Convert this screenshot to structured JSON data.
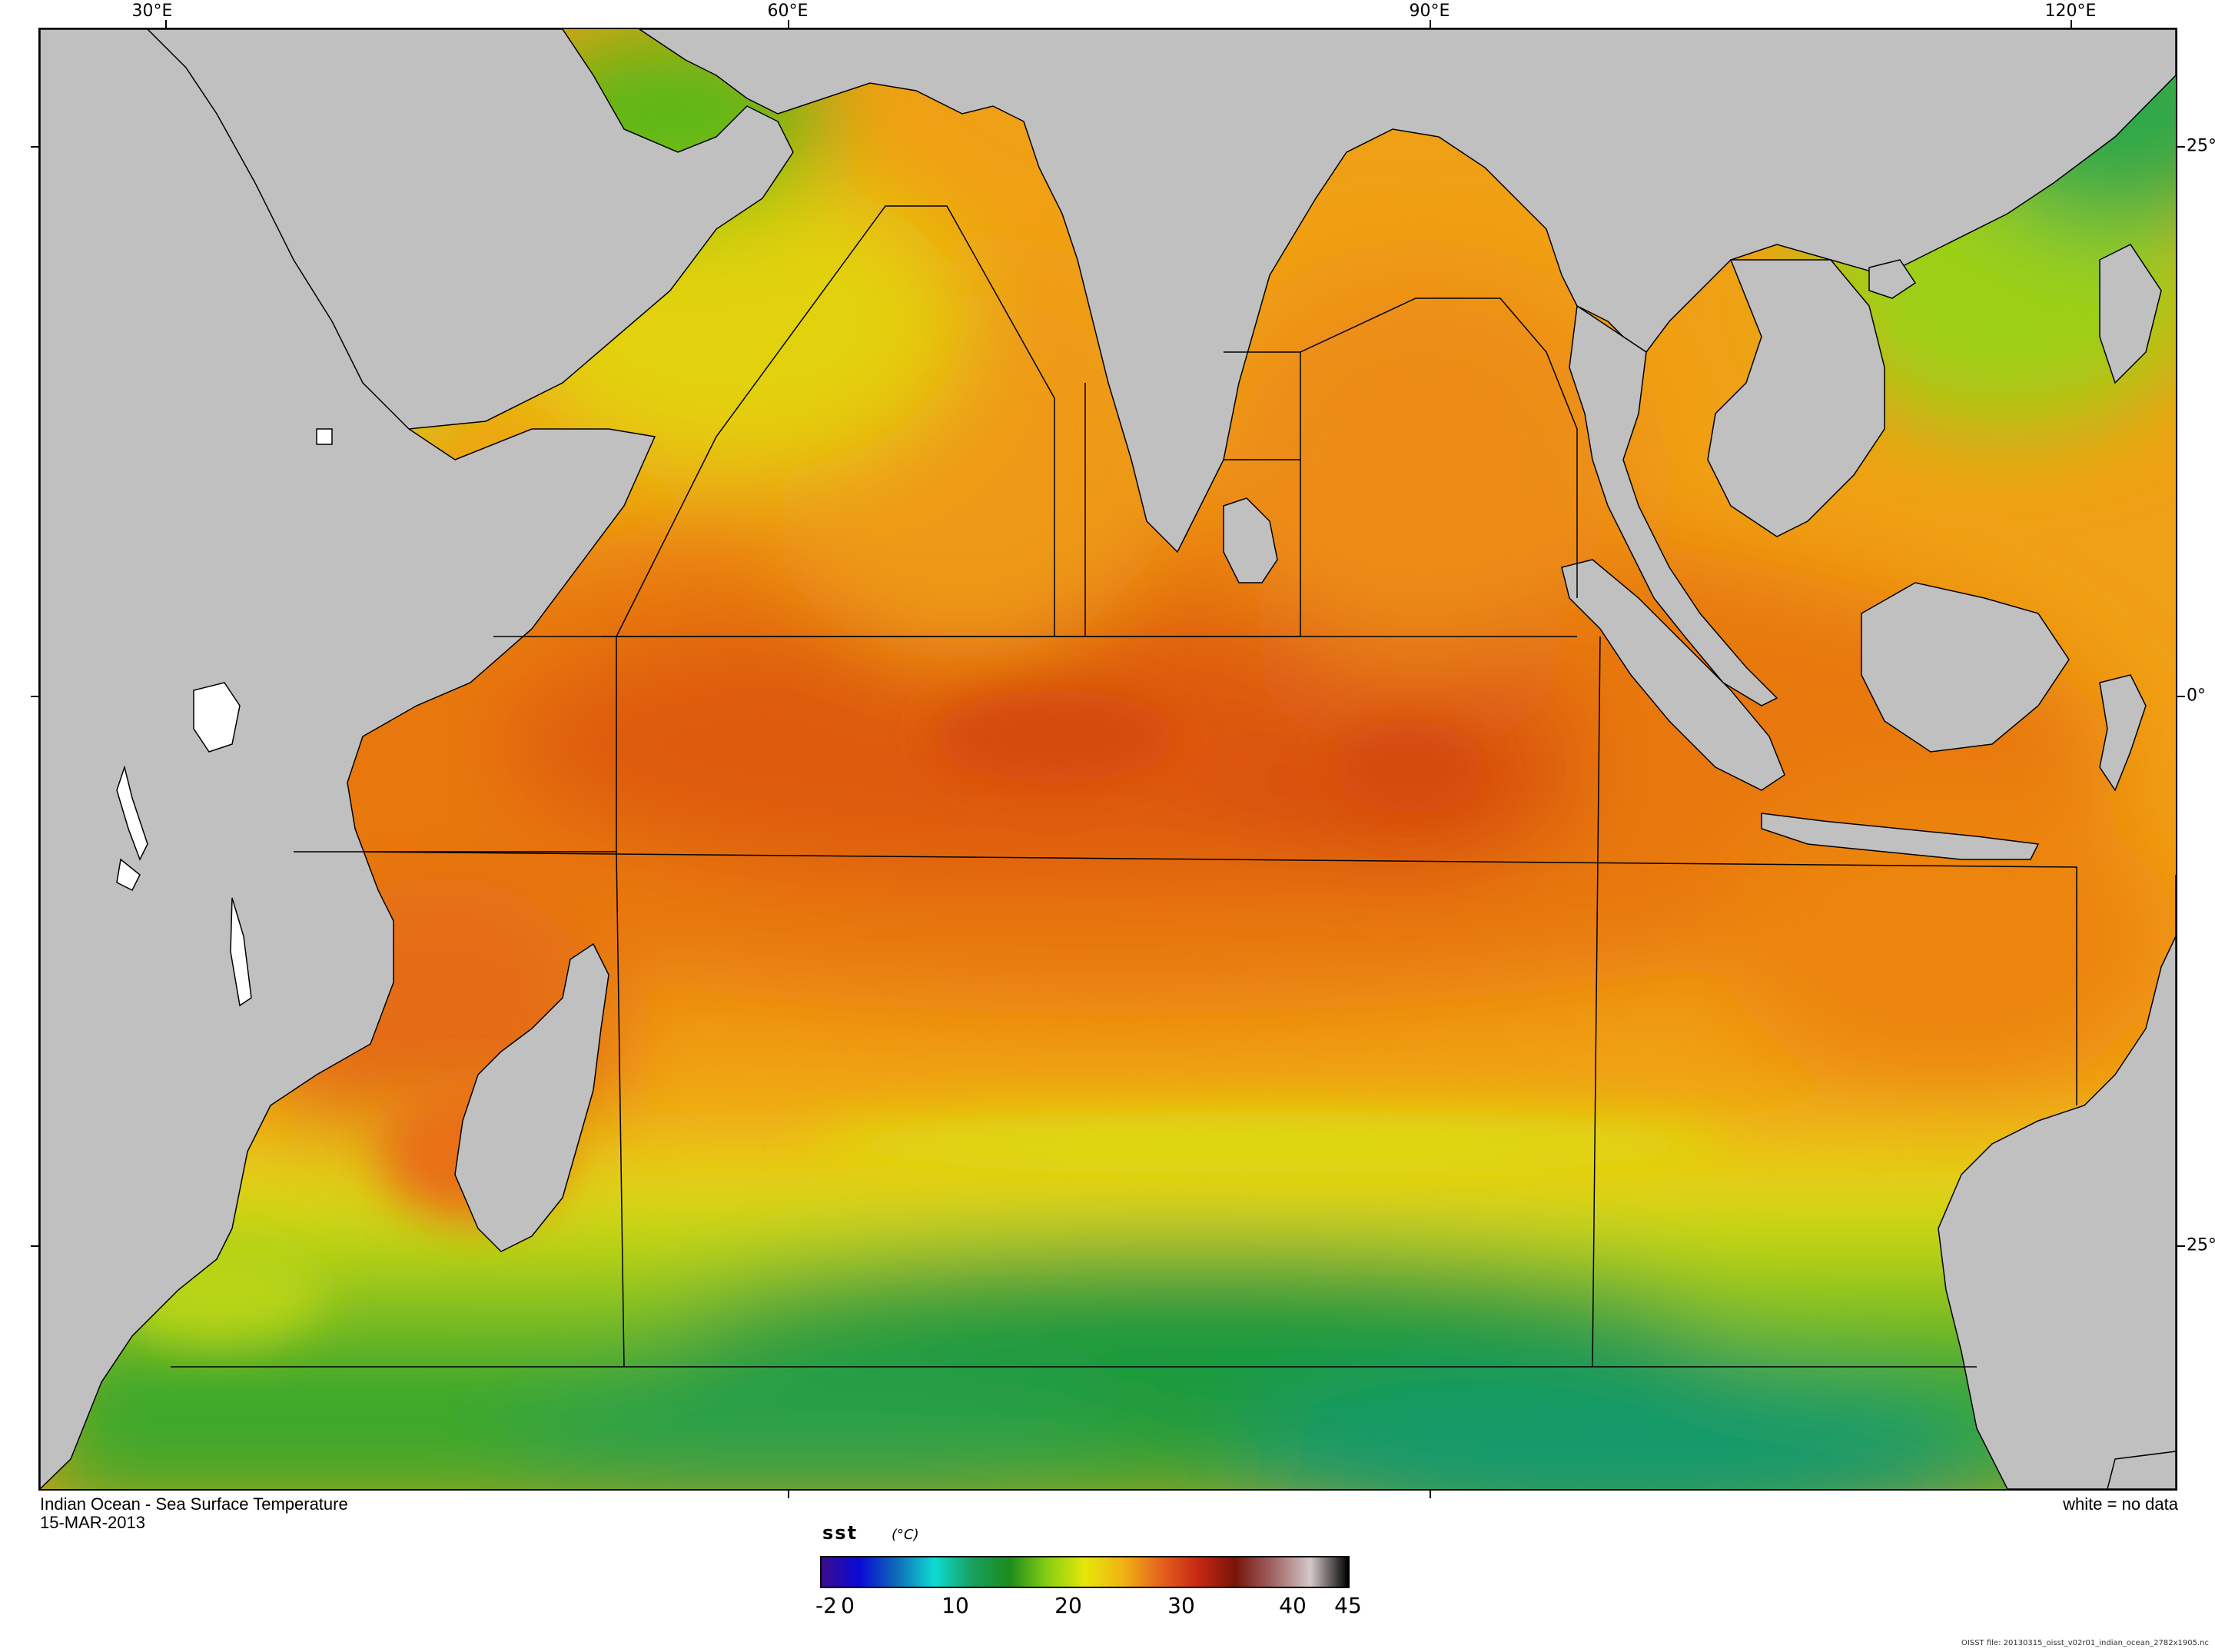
{
  "map": {
    "title": "Indian Ocean - Sea Surface Temperature",
    "date": "15-MAR-2013",
    "note": "white = no data",
    "file_note": "OISST file: 20130315_oisst_v02r01_indian_ocean_2782x1905.nc",
    "lon_labels": [
      "30°E",
      "60°E",
      "90°E",
      "120°E"
    ],
    "lat_labels": [
      "25°",
      "0°",
      "25°"
    ],
    "land_color": "#c0c0c0",
    "nodata_color": "#ffffff"
  },
  "colorbar": {
    "variable": "sst",
    "unit": "(°C)",
    "tick_labels": [
      "-2",
      "0",
      "10",
      "20",
      "30",
      "40",
      "45"
    ],
    "min": -2,
    "max": 45,
    "stops": [
      "#3a0c8c",
      "#0a0ad6",
      "#0f6ab8",
      "#0ddcd2",
      "#18a060",
      "#1c8c1c",
      "#86cf12",
      "#e6e60a",
      "#f0b414",
      "#e6641e",
      "#c82814",
      "#78140a",
      "#a06464",
      "#d4c8c8",
      "#000000"
    ]
  }
}
